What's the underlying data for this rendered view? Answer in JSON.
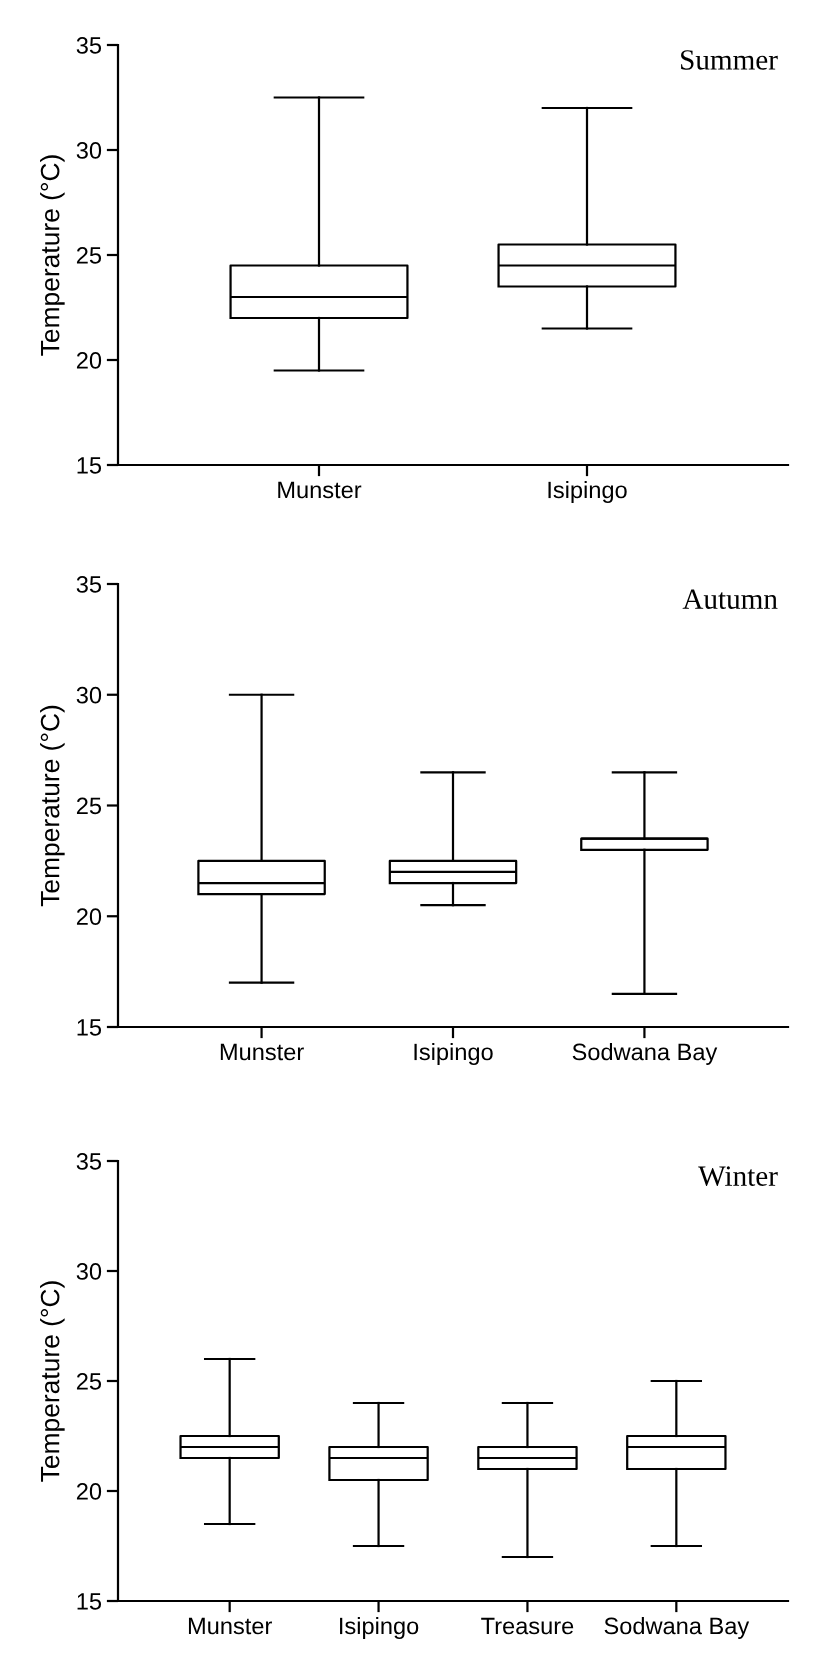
{
  "chart_data": [
    {
      "type": "box",
      "title": "Summer",
      "ylabel": "Temperature (°C)",
      "categories": [
        "Munster",
        "Isipingo"
      ],
      "ylim": [
        15,
        35
      ],
      "yticks": [
        15,
        20,
        25,
        30,
        35
      ],
      "color": "#000000",
      "boxes": [
        {
          "low": 19.5,
          "q1": 22,
          "median": 23,
          "q3": 24.5,
          "high": 32.5
        },
        {
          "low": 21.5,
          "q1": 23.5,
          "median": 24.5,
          "q3": 25.5,
          "high": 32
        }
      ]
    },
    {
      "type": "box",
      "title": "Autumn",
      "ylabel": "Temperature (°C)",
      "categories": [
        "Munster",
        "Isipingo",
        "Sodwana Bay"
      ],
      "ylim": [
        15,
        35
      ],
      "yticks": [
        15,
        20,
        25,
        30,
        35
      ],
      "color": "#000000",
      "boxes": [
        {
          "low": 17,
          "q1": 21,
          "median": 21.5,
          "q3": 22.5,
          "high": 30
        },
        {
          "low": 20.5,
          "q1": 21.5,
          "median": 22,
          "q3": 22.5,
          "high": 26.5
        },
        {
          "low": 16.5,
          "q1": 23,
          "median": 23.5,
          "q3": 23.5,
          "high": 26.5
        }
      ]
    },
    {
      "type": "box",
      "title": "Winter",
      "ylabel": "Temperature (°C)",
      "categories": [
        "Munster",
        "Isipingo",
        "Treasure",
        "Sodwana Bay"
      ],
      "ylim": [
        15,
        35
      ],
      "yticks": [
        15,
        20,
        25,
        30,
        35
      ],
      "color": "#000000",
      "boxes": [
        {
          "low": 18.5,
          "q1": 21.5,
          "median": 22,
          "q3": 22.5,
          "high": 26
        },
        {
          "low": 17.5,
          "q1": 20.5,
          "median": 21.5,
          "q3": 22,
          "high": 24
        },
        {
          "low": 17,
          "q1": 21,
          "median": 21.5,
          "q3": 22,
          "high": 24
        },
        {
          "low": 17.5,
          "q1": 21,
          "median": 22,
          "q3": 22.5,
          "high": 25
        }
      ]
    }
  ]
}
